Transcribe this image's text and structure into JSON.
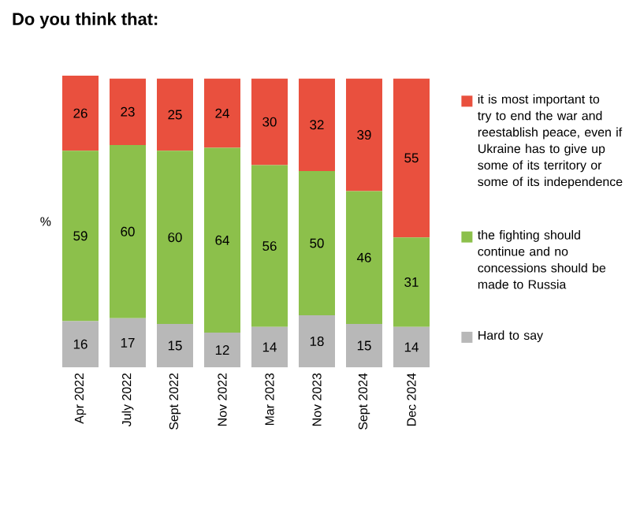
{
  "chart_data": {
    "type": "bar",
    "title": "Do you think that:",
    "ylabel": "%",
    "stacked": true,
    "data_labels": true,
    "legend": "right",
    "categories": [
      "Apr 2022",
      "July 2022",
      "Sept 2022",
      "Nov 2022",
      "Mar 2023",
      "Nov 2023",
      "Sept 2024",
      "Dec 2024"
    ],
    "series": [
      {
        "name": "Hard to say",
        "color": "#b8b8b8",
        "values": [
          16,
          17,
          15,
          12,
          14,
          18,
          15,
          14
        ]
      },
      {
        "name": "the fighting should continue and no concessions should be made to Russia",
        "color": "#8cc04b",
        "values": [
          59,
          60,
          60,
          64,
          56,
          50,
          46,
          31
        ]
      },
      {
        "name": "it is most important to try to end the war and reestablish peace, even if Ukraine has to give up some of its territory or some of its independence",
        "color": "#e9503e",
        "values": [
          26,
          23,
          25,
          24,
          30,
          32,
          39,
          55
        ]
      }
    ]
  }
}
